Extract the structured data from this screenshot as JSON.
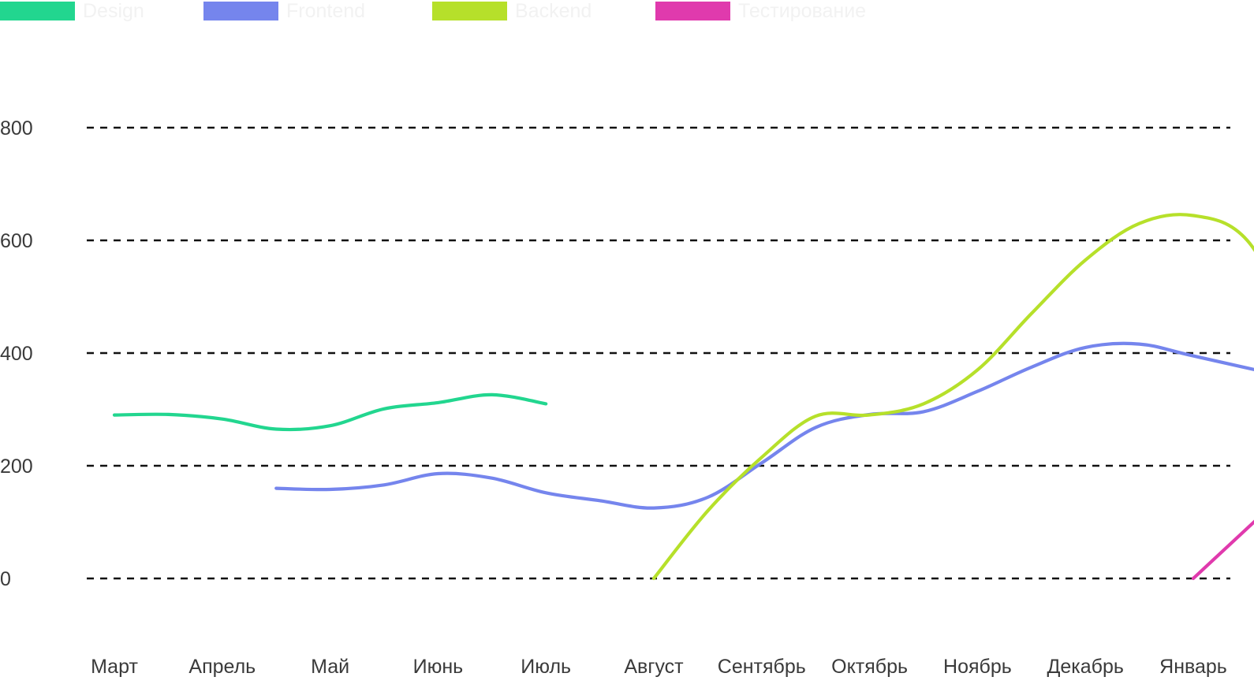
{
  "chart_data": {
    "type": "line",
    "categories": [
      "Март",
      "Апрель",
      "Май",
      "Июнь",
      "Июль",
      "Август",
      "Сентябрь",
      "Октябрь",
      "Ноябрь",
      "Декабрь",
      "Январь"
    ],
    "y_ticks": [
      "0",
      "200",
      "400",
      "600",
      "800"
    ],
    "ylim": [
      0,
      800
    ],
    "grid": true,
    "grid_style": "dashed",
    "legend_position": "top-left",
    "series": [
      {
        "name": "Design",
        "color": "#22d68f",
        "points": [
          [
            0,
            290
          ],
          [
            0.5,
            291
          ],
          [
            1,
            283
          ],
          [
            1.5,
            265
          ],
          [
            2,
            271
          ],
          [
            2.5,
            301
          ],
          [
            3,
            312
          ],
          [
            3.5,
            326
          ],
          [
            4,
            310
          ]
        ]
      },
      {
        "name": "Frontend",
        "color": "#7585ed",
        "points": [
          [
            1.5,
            160
          ],
          [
            2,
            158
          ],
          [
            2.5,
            166
          ],
          [
            3,
            186
          ],
          [
            3.5,
            178
          ],
          [
            4,
            152
          ],
          [
            4.5,
            138
          ],
          [
            5,
            125
          ],
          [
            5.5,
            144
          ],
          [
            6,
            205
          ],
          [
            6.5,
            268
          ],
          [
            7,
            291
          ],
          [
            7.5,
            296
          ],
          [
            8,
            332
          ],
          [
            8.5,
            375
          ],
          [
            9,
            410
          ],
          [
            9.5,
            416
          ],
          [
            10,
            395
          ],
          [
            11,
            352
          ]
        ]
      },
      {
        "name": "Backend",
        "color": "#b6e02a",
        "points": [
          [
            5,
            0
          ],
          [
            5.5,
            120
          ],
          [
            6,
            215
          ],
          [
            6.5,
            288
          ],
          [
            7,
            290
          ],
          [
            7.5,
            310
          ],
          [
            8,
            370
          ],
          [
            8.5,
            470
          ],
          [
            9,
            565
          ],
          [
            9.5,
            630
          ],
          [
            10,
            644
          ],
          [
            10.5,
            600
          ],
          [
            11,
            430
          ]
        ]
      },
      {
        "name": "Тестирование",
        "color": "#e03aad",
        "points": [
          [
            10,
            0
          ],
          [
            11,
            178
          ]
        ]
      }
    ]
  }
}
